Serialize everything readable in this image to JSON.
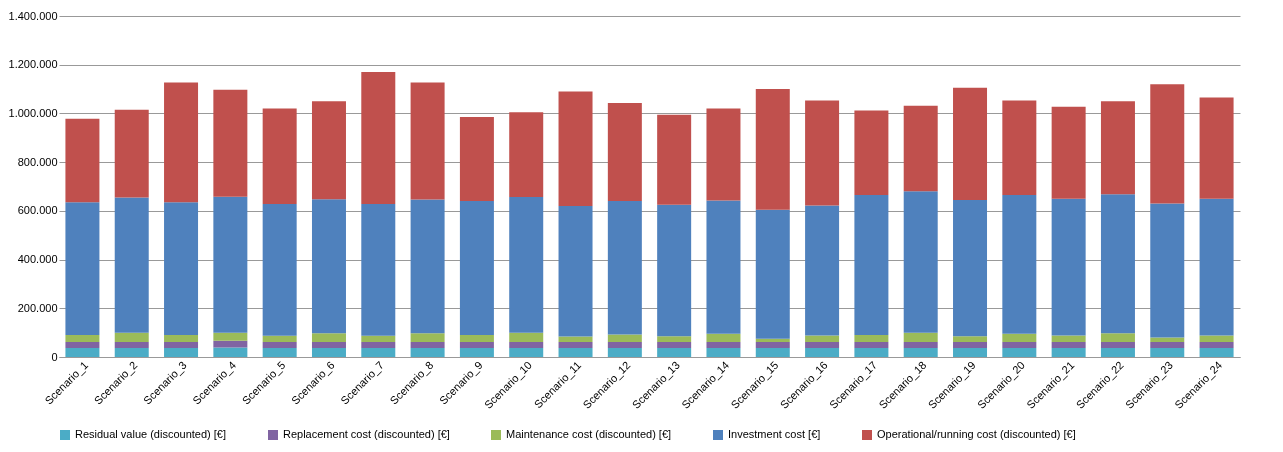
{
  "chart_data": {
    "type": "bar",
    "stacked": true,
    "categories": [
      "Scenario_1",
      "Scenario_2",
      "Scenario_3",
      "Scenario_4",
      "Scenario_5",
      "Scenario_6",
      "Scenario_7",
      "Scenario_8",
      "Scenario_9",
      "Scenario_10",
      "Scenario_11",
      "Scenario_12",
      "Scenario_13",
      "Scenario_14",
      "Scenario_15",
      "Scenario_16",
      "Scenario_17",
      "Scenario_18",
      "Scenario_19",
      "Scenario_20",
      "Scenario_21",
      "Scenario_22",
      "Scenario_23",
      "Scenario_24"
    ],
    "series": [
      {
        "name": "Residual value (discounted) [€]",
        "color": "#4bacc6",
        "values": [
          37000,
          37000,
          37000,
          39000,
          37000,
          37000,
          37000,
          37000,
          37000,
          37000,
          37000,
          37000,
          37000,
          37000,
          37000,
          37000,
          37000,
          37000,
          37000,
          37000,
          37000,
          37000,
          37000,
          37000
        ]
      },
      {
        "name": "Replacement cost (discounted) [€]",
        "color": "#8064a2",
        "values": [
          25000,
          25000,
          25000,
          28000,
          25000,
          25000,
          25000,
          25000,
          25000,
          25000,
          25000,
          25000,
          25000,
          25000,
          25000,
          25000,
          25000,
          25000,
          25000,
          25000,
          25000,
          25000,
          25000,
          25000
        ]
      },
      {
        "name": "Maintenance cost (discounted) [€]",
        "color": "#9bbb59",
        "values": [
          28000,
          38000,
          28000,
          33000,
          25000,
          35000,
          25000,
          35000,
          28000,
          38000,
          22000,
          30000,
          23000,
          33000,
          13000,
          26000,
          28000,
          38000,
          23000,
          33000,
          26000,
          35000,
          18000,
          26000
        ]
      },
      {
        "name": "Investment cost [€]",
        "color": "#4f81bd",
        "values": [
          545000,
          555000,
          545000,
          558000,
          541000,
          551000,
          541000,
          550000,
          550000,
          557000,
          536000,
          548000,
          540000,
          548000,
          530000,
          534000,
          575000,
          580000,
          560000,
          570000,
          562000,
          571000,
          550000,
          562000
        ]
      },
      {
        "name": "Operational/running cost (discounted) [€]",
        "color": "#c0504d",
        "values": [
          343000,
          360000,
          492000,
          439000,
          392000,
          402000,
          542000,
          480000,
          345000,
          348000,
          470000,
          403000,
          370000,
          377000,
          495000,
          431000,
          347000,
          352000,
          460000,
          388000,
          377000,
          382000,
          490000,
          415000
        ]
      }
    ],
    "ylim": [
      0,
      1400000
    ],
    "yticks": [
      {
        "value": 0,
        "label": "0"
      },
      {
        "value": 200000,
        "label": "200.000"
      },
      {
        "value": 400000,
        "label": "400.000"
      },
      {
        "value": 600000,
        "label": "600.000"
      },
      {
        "value": 800000,
        "label": "800.000"
      },
      {
        "value": 1000000,
        "label": "1.000.000"
      },
      {
        "value": 1200000,
        "label": "1.200.000"
      },
      {
        "value": 1400000,
        "label": "1.400.000"
      }
    ],
    "grid": "y",
    "legend": "bottom"
  }
}
